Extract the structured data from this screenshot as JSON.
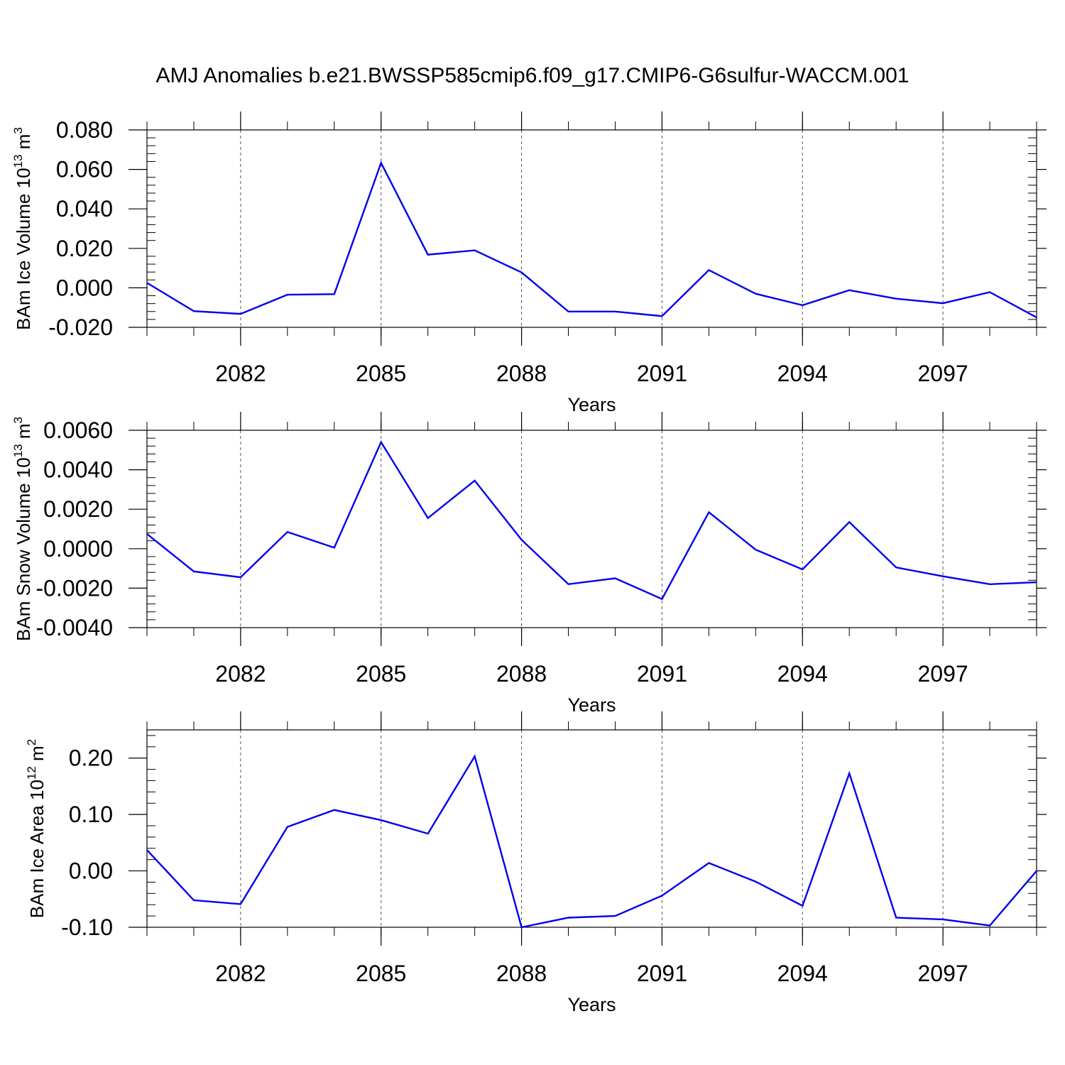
{
  "title": "AMJ Anomalies b.e21.BWSSP585cmip6.f09_g17.CMIP6-G6sulfur-WACCM.001",
  "chart_data": [
    {
      "type": "line",
      "title": "",
      "xlabel": "Years",
      "ylabel": "BAm Ice Volume 10",
      "ylabel_exp": "13",
      "ylabel_unit": " m",
      "ylabel_unit_exp": "3",
      "xlim": [
        2080,
        2099
      ],
      "ylim": [
        -0.02,
        0.08
      ],
      "yticks": [
        -0.02,
        0.0,
        0.02,
        0.04,
        0.06,
        0.08
      ],
      "ytick_labels": [
        "-0.020",
        "0.000",
        "0.020",
        "0.040",
        "0.060",
        "0.080"
      ],
      "xticks": [
        2082,
        2085,
        2088,
        2091,
        2094,
        2097
      ],
      "xtick_labels": [
        "2082",
        "2085",
        "2088",
        "2091",
        "2094",
        "2097"
      ],
      "grid": "vertical dashed at labeled years",
      "line_color": "#0000ee",
      "x": [
        2080,
        2081,
        2082,
        2083,
        2084,
        2085,
        2086,
        2087,
        2088,
        2089,
        2090,
        2091,
        2092,
        2093,
        2094,
        2095,
        2096,
        2097,
        2098,
        2099
      ],
      "values": [
        0.0025,
        -0.0118,
        -0.0132,
        -0.0035,
        -0.0032,
        0.0633,
        0.0168,
        0.019,
        0.0078,
        -0.012,
        -0.012,
        -0.0143,
        0.009,
        -0.003,
        -0.0088,
        -0.0012,
        -0.0055,
        -0.0078,
        -0.0022,
        -0.015
      ]
    },
    {
      "type": "line",
      "title": "",
      "xlabel": "Years",
      "ylabel": "BAm Snow Volume 10",
      "ylabel_exp": "13",
      "ylabel_unit": " m",
      "ylabel_unit_exp": "3",
      "xlim": [
        2080,
        2099
      ],
      "ylim": [
        -0.004,
        0.006
      ],
      "yticks": [
        -0.004,
        -0.002,
        0.0,
        0.002,
        0.004,
        0.006
      ],
      "ytick_labels": [
        "-0.0040",
        "-0.0020",
        "0.0000",
        "0.0020",
        "0.0040",
        "0.0060"
      ],
      "xticks": [
        2082,
        2085,
        2088,
        2091,
        2094,
        2097
      ],
      "xtick_labels": [
        "2082",
        "2085",
        "2088",
        "2091",
        "2094",
        "2097"
      ],
      "grid": "vertical dashed at labeled years",
      "line_color": "#0000ee",
      "x": [
        2080,
        2081,
        2082,
        2083,
        2084,
        2085,
        2086,
        2087,
        2088,
        2089,
        2090,
        2091,
        2092,
        2093,
        2094,
        2095,
        2096,
        2097,
        2098,
        2099
      ],
      "values": [
        0.00075,
        -0.00115,
        -0.00145,
        0.00085,
        5e-05,
        0.0054,
        0.00155,
        0.00345,
        0.00045,
        -0.0018,
        -0.0015,
        -0.00255,
        0.00185,
        -5e-05,
        -0.00105,
        0.00135,
        -0.00095,
        -0.0014,
        -0.0018,
        -0.0017
      ]
    },
    {
      "type": "line",
      "title": "",
      "xlabel": "Years",
      "ylabel": "BAm Ice Area 10",
      "ylabel_exp": "12",
      "ylabel_unit": " m",
      "ylabel_unit_exp": "2",
      "xlim": [
        2080,
        2099
      ],
      "ylim": [
        -0.1,
        0.25
      ],
      "yticks": [
        -0.1,
        0.0,
        0.1,
        0.2
      ],
      "ytick_labels": [
        "-0.10",
        "0.00",
        "0.10",
        "0.20"
      ],
      "xticks": [
        2082,
        2085,
        2088,
        2091,
        2094,
        2097
      ],
      "xtick_labels": [
        "2082",
        "2085",
        "2088",
        "2091",
        "2094",
        "2097"
      ],
      "grid": "vertical dashed at labeled years",
      "line_color": "#0000ee",
      "x": [
        2080,
        2081,
        2082,
        2083,
        2084,
        2085,
        2086,
        2087,
        2088,
        2089,
        2090,
        2091,
        2092,
        2093,
        2094,
        2095,
        2096,
        2097,
        2098,
        2099
      ],
      "values": [
        0.037,
        -0.052,
        -0.059,
        0.078,
        0.108,
        0.09,
        0.066,
        0.203,
        -0.1,
        -0.083,
        -0.08,
        -0.044,
        0.014,
        -0.019,
        -0.062,
        0.173,
        -0.083,
        -0.086,
        -0.097,
        0.0
      ]
    }
  ]
}
